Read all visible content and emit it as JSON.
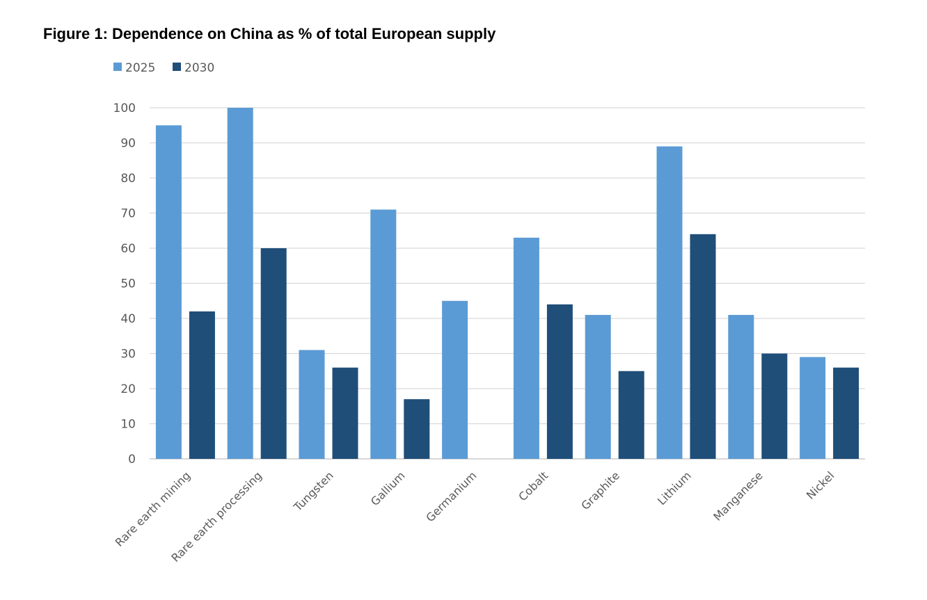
{
  "chart_data": {
    "type": "bar",
    "title": "Figure 1: Dependence on China as % of total European supply",
    "xlabel": "",
    "ylabel": "",
    "ylim": [
      0,
      100
    ],
    "yticks": [
      0,
      10,
      20,
      30,
      40,
      50,
      60,
      70,
      80,
      90,
      100
    ],
    "grid": true,
    "legend_position": "top-left",
    "categories": [
      "Rare earth mining",
      "Rare earth processing",
      "Tungsten",
      "Gallium",
      "Germanium",
      "Cobalt",
      "Graphite",
      "Lithium",
      "Manganese",
      "Nickel"
    ],
    "series": [
      {
        "name": "2025",
        "color": "#5B9BD5",
        "values": [
          95,
          100,
          31,
          71,
          45,
          63,
          41,
          89,
          41,
          29
        ]
      },
      {
        "name": "2030",
        "color": "#1F4E79",
        "values": [
          42,
          60,
          26,
          17,
          null,
          44,
          25,
          64,
          30,
          26
        ]
      }
    ]
  }
}
